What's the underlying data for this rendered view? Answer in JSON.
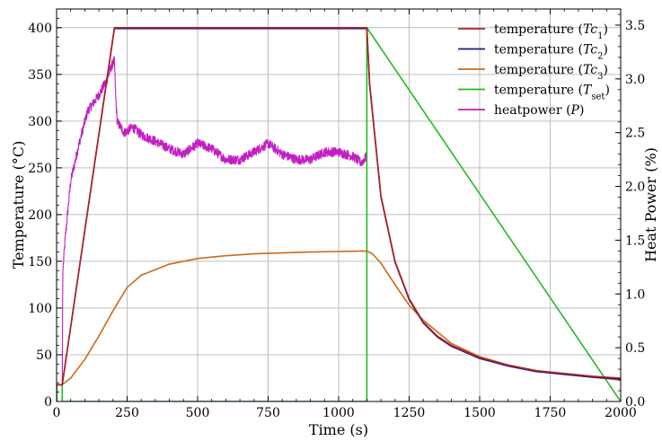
{
  "chart_data": {
    "type": "line",
    "xlabel": "Time (s)",
    "ylabel": "Temperature (°C)",
    "y2label": "Heat Power (%)",
    "xlim": [
      0,
      2000
    ],
    "ylim": [
      0,
      420
    ],
    "y2lim": [
      0,
      3.65
    ],
    "xticks": [
      0,
      250,
      500,
      750,
      1000,
      1250,
      1500,
      1750,
      2000
    ],
    "yticks": [
      0,
      50,
      100,
      150,
      200,
      250,
      300,
      350,
      400
    ],
    "y2ticks": [
      0.0,
      0.5,
      1.0,
      1.5,
      2.0,
      2.5,
      3.0,
      3.5
    ],
    "xtick_labels": [
      "0",
      "250",
      "500",
      "750",
      "1000",
      "1250",
      "1500",
      "1750",
      "2000"
    ],
    "ytick_labels": [
      "0",
      "50",
      "100",
      "150",
      "200",
      "250",
      "300",
      "350",
      "400"
    ],
    "y2tick_labels": [
      "0.0",
      "0.5",
      "1.0",
      "1.5",
      "2.0",
      "2.5",
      "3.0",
      "3.5"
    ],
    "grid": true,
    "legend_position": "top-right",
    "series": [
      {
        "name": "temperature (Tc1)",
        "legend": {
          "base": "temperature (",
          "italic": "Tc",
          "sub": "1",
          "close": ")"
        },
        "color": "#b22222",
        "axis": "left",
        "x": [
          0,
          20,
          205,
          1100,
          1110,
          1150,
          1200,
          1250,
          1300,
          1350,
          1400,
          1500,
          1600,
          1700,
          1800,
          1900,
          2000
        ],
        "y": [
          18,
          18,
          400,
          400,
          340,
          220,
          150,
          110,
          85,
          70,
          60,
          47,
          39,
          33,
          30,
          27,
          25
        ]
      },
      {
        "name": "temperature (Tc2)",
        "legend": {
          "base": "temperature (",
          "italic": "Tc",
          "sub": "2",
          "close": ")"
        },
        "color": "#1a1a8c",
        "axis": "left",
        "x": [
          0,
          20,
          205,
          1100,
          1110,
          1150,
          1200,
          1250,
          1300,
          1350,
          1400,
          1500,
          1600,
          1700,
          1800,
          1900,
          2000
        ],
        "y": [
          18,
          18,
          399,
          399,
          338,
          219,
          149,
          109,
          84,
          69,
          59,
          46,
          38,
          32,
          29,
          26,
          24
        ]
      },
      {
        "name": "temperature (Tc3)",
        "legend": {
          "base": "temperature (",
          "italic": "Tc",
          "sub": "3",
          "close": ")"
        },
        "color": "#cc6a1a",
        "axis": "left",
        "x": [
          0,
          20,
          50,
          100,
          150,
          200,
          250,
          300,
          400,
          500,
          600,
          700,
          800,
          900,
          1000,
          1100,
          1120,
          1150,
          1200,
          1250,
          1300,
          1400,
          1500,
          1600,
          1700,
          1800,
          1900,
          2000
        ],
        "y": [
          18,
          18,
          25,
          45,
          70,
          97,
          122,
          135,
          147,
          153,
          156,
          158,
          159,
          160,
          160.5,
          161,
          158,
          148,
          125,
          103,
          87,
          62,
          48,
          39,
          33,
          29,
          26,
          23
        ]
      },
      {
        "name": "temperature (Tset)",
        "legend": {
          "base": "temperature (",
          "italic": "T",
          "sub": "set",
          "close": ")"
        },
        "color": "#22bb22",
        "axis": "left",
        "x": [
          0,
          1,
          1,
          20,
          20,
          1100,
          1100,
          2000
        ],
        "y": [
          0,
          0,
          18,
          18,
          0,
          0,
          400,
          0
        ]
      },
      {
        "name": "heatpower (P)",
        "legend": {
          "base": "heatpower (",
          "italic": "P",
          "sub": "",
          "close": ")"
        },
        "color": "#c21fc2",
        "axis": "right",
        "noisy": true,
        "x": [
          20,
          22,
          30,
          50,
          80,
          110,
          150,
          180,
          195,
          205,
          210,
          215,
          240,
          270,
          300,
          350,
          400,
          450,
          500,
          550,
          600,
          650,
          700,
          750,
          800,
          850,
          900,
          950,
          1000,
          1050,
          1080,
          1100
        ],
        "y": [
          0.1,
          1.2,
          1.5,
          2.05,
          2.4,
          2.7,
          2.85,
          3.0,
          3.12,
          3.17,
          2.8,
          2.6,
          2.5,
          2.55,
          2.48,
          2.42,
          2.35,
          2.3,
          2.4,
          2.35,
          2.25,
          2.25,
          2.32,
          2.4,
          2.3,
          2.25,
          2.25,
          2.32,
          2.32,
          2.28,
          2.22,
          2.28
        ]
      }
    ]
  }
}
